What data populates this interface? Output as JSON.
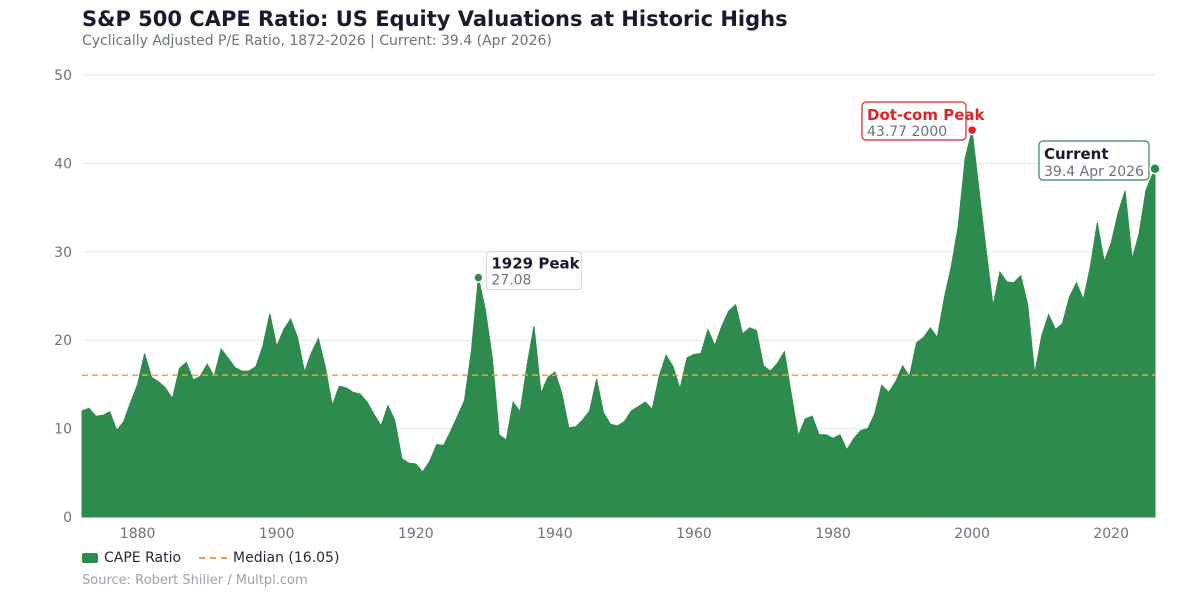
{
  "title": "S&P 500 CAPE Ratio: US Equity Valuations at Historic Highs",
  "subtitle": "Cyclically Adjusted P/E Ratio, 1872-2026  |  Current: 39.4 (Apr 2026)",
  "source": "Source: Robert Shiller / Multpl.com",
  "colors": {
    "area": "#2e8b4e",
    "median": "#e8a33d",
    "dotcom": "#dc2626",
    "grid": "#e5e7eb",
    "axis_text": "#6b7280"
  },
  "legend": {
    "area_label": "CAPE Ratio",
    "median_label": "Median (16.05)"
  },
  "annotations": {
    "peak1929": {
      "title": "1929 Peak",
      "value": "27.08"
    },
    "dotcom": {
      "title": "Dot-com Peak",
      "value": "43.77  2000"
    },
    "current": {
      "title": "Current",
      "value": "39.4  Apr 2026"
    }
  },
  "chart_data": {
    "type": "area",
    "title": "S&P 500 CAPE Ratio: US Equity Valuations at Historic Highs",
    "xlim": [
      1872,
      2026.3
    ],
    "ylim": [
      0,
      50
    ],
    "x_ticks": [
      1880,
      1900,
      1920,
      1940,
      1960,
      1980,
      2000,
      2020
    ],
    "y_ticks": [
      0,
      10,
      20,
      30,
      40,
      50
    ],
    "grid": "horizontal",
    "legend_position": "bottom-left",
    "median": 16.05,
    "series": [
      {
        "name": "CAPE Ratio",
        "x": [
          1872,
          1873,
          1874,
          1875,
          1876,
          1877,
          1878,
          1879,
          1880,
          1881,
          1882,
          1883,
          1884,
          1885,
          1886,
          1887,
          1888,
          1889,
          1890,
          1891,
          1892,
          1893,
          1894,
          1895,
          1896,
          1897,
          1898,
          1899,
          1900,
          1901,
          1902,
          1903,
          1904,
          1905,
          1906,
          1907,
          1908,
          1909,
          1910,
          1911,
          1912,
          1913,
          1914,
          1915,
          1916,
          1917,
          1918,
          1919,
          1920,
          1921,
          1922,
          1923,
          1924,
          1925,
          1926,
          1927,
          1928,
          1929,
          1930,
          1931,
          1932,
          1933,
          1934,
          1935,
          1936,
          1937,
          1938,
          1939,
          1940,
          1941,
          1942,
          1943,
          1944,
          1945,
          1946,
          1947,
          1948,
          1949,
          1950,
          1951,
          1952,
          1953,
          1954,
          1955,
          1956,
          1957,
          1958,
          1959,
          1960,
          1961,
          1962,
          1963,
          1964,
          1965,
          1966,
          1967,
          1968,
          1969,
          1970,
          1971,
          1972,
          1973,
          1974,
          1975,
          1976,
          1977,
          1978,
          1979,
          1980,
          1981,
          1982,
          1983,
          1984,
          1985,
          1986,
          1987,
          1988,
          1989,
          1990,
          1991,
          1992,
          1993,
          1994,
          1995,
          1996,
          1997,
          1998,
          1999,
          2000,
          2001,
          2002,
          2003,
          2004,
          2005,
          2006,
          2007,
          2008,
          2009,
          2010,
          2011,
          2012,
          2013,
          2014,
          2015,
          2016,
          2017,
          2018,
          2019,
          2020,
          2021,
          2022,
          2023,
          2024,
          2025,
          2026.3
        ],
        "values": [
          12.0,
          12.3,
          11.4,
          11.5,
          11.9,
          9.8,
          10.8,
          13.0,
          15.0,
          18.5,
          15.8,
          15.3,
          14.6,
          13.4,
          16.8,
          17.5,
          15.5,
          15.9,
          17.3,
          15.9,
          19.0,
          18.0,
          16.9,
          16.5,
          16.5,
          17.0,
          19.3,
          23.0,
          19.3,
          21.2,
          22.4,
          20.3,
          16.4,
          18.6,
          20.2,
          16.9,
          12.6,
          14.8,
          14.6,
          14.1,
          13.9,
          13.0,
          11.6,
          10.3,
          12.6,
          10.9,
          6.6,
          6.1,
          6.0,
          5.1,
          6.3,
          8.2,
          8.1,
          9.7,
          11.4,
          13.2,
          18.8,
          27.08,
          23.5,
          18.0,
          9.3,
          8.7,
          13.0,
          11.9,
          17.2,
          21.6,
          14.0,
          15.8,
          16.4,
          14.0,
          10.1,
          10.2,
          11.0,
          12.0,
          15.6,
          11.8,
          10.5,
          10.3,
          10.8,
          12.0,
          12.5,
          13.0,
          12.2,
          15.9,
          18.3,
          17.0,
          14.5,
          18.0,
          18.4,
          18.5,
          21.2,
          19.4,
          21.6,
          23.3,
          24.0,
          20.7,
          21.4,
          21.1,
          17.1,
          16.5,
          17.4,
          18.7,
          13.9,
          9.2,
          11.1,
          11.4,
          9.3,
          9.3,
          8.9,
          9.3,
          7.6,
          8.9,
          9.8,
          10.0,
          11.7,
          14.9,
          14.1,
          15.3,
          17.1,
          15.9,
          19.7,
          20.3,
          21.4,
          20.3,
          24.8,
          28.3,
          32.9,
          40.6,
          43.77,
          36.9,
          30.3,
          23.9,
          27.7,
          26.6,
          26.5,
          27.3,
          24.0,
          16.2,
          20.5,
          22.9,
          21.2,
          21.9,
          24.9,
          26.5,
          24.6,
          28.3,
          33.3,
          28.9,
          31.0,
          34.4,
          36.9,
          29.2,
          32.0,
          37.0,
          39.4
        ]
      }
    ]
  }
}
